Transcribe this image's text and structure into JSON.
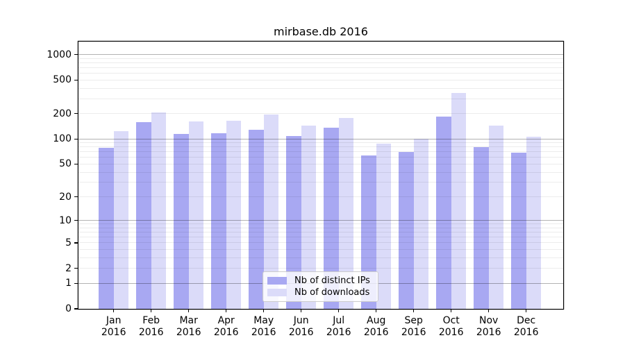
{
  "figure": {
    "background": "#ffffff",
    "border_color": "#000000",
    "text_color": "#000000"
  },
  "chart_data": {
    "type": "bar",
    "title": "mirbase.db 2016",
    "xlabel": "",
    "ylabel": "",
    "yscale": "log1p",
    "ylim": [
      0,
      1420
    ],
    "grid": true,
    "legend_position": "lower center",
    "categories": [
      {
        "month": "Jan",
        "year": "2016"
      },
      {
        "month": "Feb",
        "year": "2016"
      },
      {
        "month": "Mar",
        "year": "2016"
      },
      {
        "month": "Apr",
        "year": "2016"
      },
      {
        "month": "May",
        "year": "2016"
      },
      {
        "month": "Jun",
        "year": "2016"
      },
      {
        "month": "Jul",
        "year": "2016"
      },
      {
        "month": "Aug",
        "year": "2016"
      },
      {
        "month": "Sep",
        "year": "2016"
      },
      {
        "month": "Oct",
        "year": "2016"
      },
      {
        "month": "Nov",
        "year": "2016"
      },
      {
        "month": "Dec",
        "year": "2016"
      }
    ],
    "series": [
      {
        "name": "Nb of distinct IPs",
        "color": "#a8a8f2",
        "values": [
          79,
          158,
          115,
          117,
          129,
          109,
          137,
          63,
          70,
          186,
          80,
          68
        ]
      },
      {
        "name": "Nb of downloads",
        "color": "#dbdbf9",
        "values": [
          123,
          206,
          162,
          165,
          196,
          145,
          176,
          88,
          100,
          352,
          144,
          106
        ]
      }
    ],
    "yticks": [
      0,
      1,
      2,
      5,
      10,
      20,
      50,
      100,
      200,
      500,
      1000
    ],
    "gridlines": {
      "major": [
        1,
        10,
        100,
        1000
      ],
      "minor": [
        2,
        3,
        4,
        5,
        6,
        7,
        8,
        9,
        20,
        30,
        40,
        50,
        60,
        70,
        80,
        90,
        200,
        300,
        400,
        500,
        600,
        700,
        800,
        900
      ]
    }
  }
}
